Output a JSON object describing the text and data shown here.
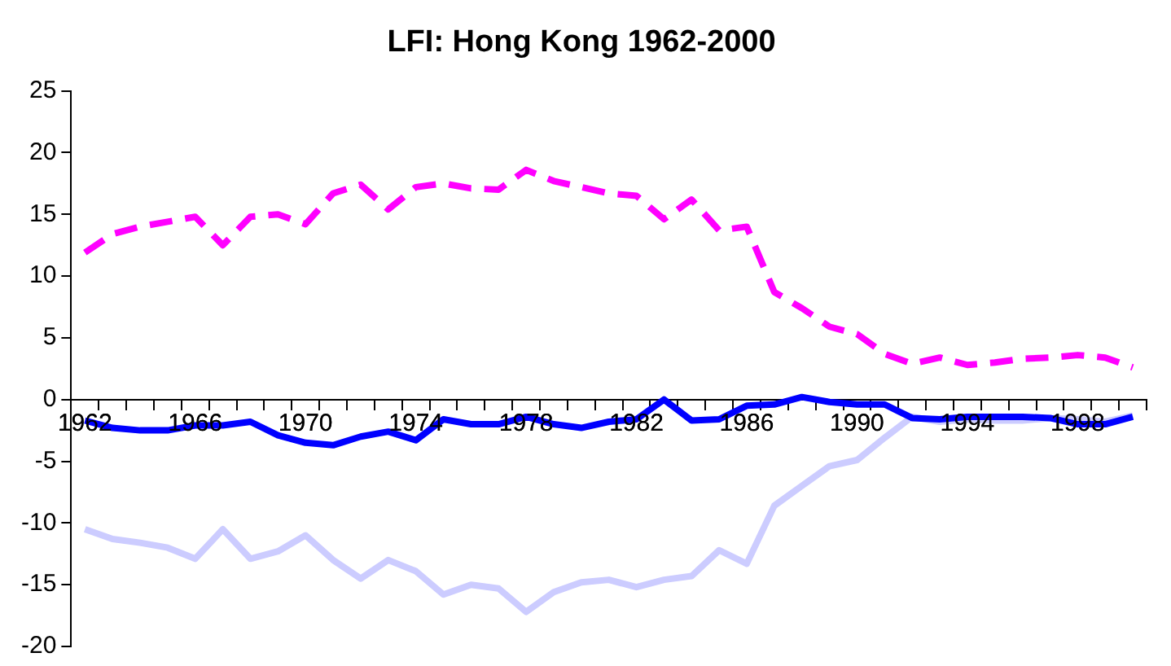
{
  "chart_data": {
    "type": "line",
    "title": "LFI: Hong Kong 1962-2000",
    "categories": [
      "1962",
      null,
      null,
      null,
      "1966",
      null,
      null,
      null,
      "1970",
      null,
      null,
      null,
      "1974",
      null,
      null,
      null,
      "1978",
      null,
      null,
      null,
      "1982",
      null,
      null,
      null,
      "1986",
      null,
      null,
      null,
      "1990",
      null,
      null,
      null,
      "1994",
      null,
      null,
      null,
      "1998",
      null,
      null
    ],
    "series": [
      {
        "color": "#ff00ff",
        "line_style": "dashed",
        "values": [
          11.9,
          13.4,
          14.0,
          14.4,
          14.8,
          12.5,
          14.8,
          15.0,
          14.2,
          16.7,
          17.4,
          15.4,
          17.2,
          17.5,
          17.1,
          17.0,
          18.6,
          17.7,
          17.2,
          16.7,
          16.5,
          14.6,
          16.2,
          13.7,
          14.0,
          8.7,
          7.4,
          5.9,
          5.3,
          3.7,
          2.9,
          3.4,
          2.8,
          3.0,
          3.3,
          3.4,
          3.6,
          3.4,
          2.6
        ]
      },
      {
        "color": "#0000ff",
        "line_style": "solid",
        "values": [
          -1.7,
          -2.3,
          -2.5,
          -2.5,
          -2.1,
          -2.1,
          -1.8,
          -2.9,
          -3.5,
          -3.7,
          -3.0,
          -2.6,
          -3.3,
          -1.6,
          -2.0,
          -2.0,
          -1.4,
          -2.0,
          -2.3,
          -1.8,
          -1.6,
          0.0,
          -1.7,
          -1.6,
          -0.5,
          -0.4,
          0.2,
          -0.2,
          -0.4,
          -0.4,
          -1.5,
          -1.6,
          -1.4,
          -1.4,
          -1.4,
          -1.5,
          -2.0,
          -2.0,
          -1.4
        ]
      },
      {
        "color": "#ccccff",
        "line_style": "solid",
        "values": [
          -10.5,
          -11.3,
          -11.6,
          -12.0,
          -12.9,
          -10.5,
          -12.9,
          -12.3,
          -11.0,
          -13.0,
          -14.5,
          -13.0,
          -13.9,
          -15.8,
          -15.0,
          -15.3,
          -17.2,
          -15.6,
          -14.8,
          -14.6,
          -15.2,
          -14.6,
          -14.3,
          -12.2,
          -13.3,
          -8.6,
          -7.0,
          -5.4,
          -4.9,
          -3.1,
          -1.4,
          -1.8,
          -1.6,
          -1.7,
          -1.7,
          -1.5,
          -1.6,
          -1.8,
          -1.3
        ]
      }
    ],
    "ylim": [
      -20,
      25
    ],
    "yticks": [
      -20,
      -15,
      -10,
      -5,
      0,
      5,
      10,
      15,
      20,
      25
    ],
    "grid": false,
    "legend": false,
    "marker": "none"
  }
}
